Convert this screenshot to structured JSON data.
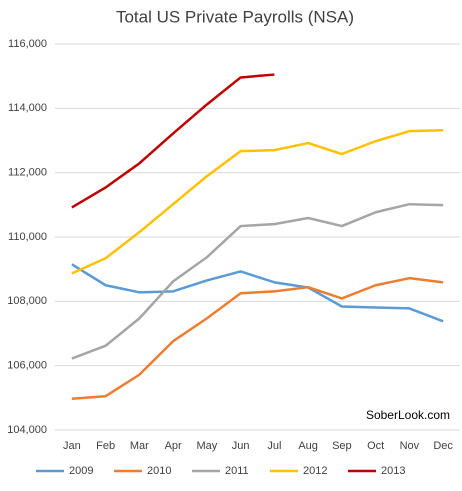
{
  "chart_data": {
    "type": "line",
    "title": "Total US Private Payrolls (NSA)",
    "categories": [
      "Jan",
      "Feb",
      "Mar",
      "Apr",
      "May",
      "Jun",
      "Jul",
      "Aug",
      "Sep",
      "Oct",
      "Nov",
      "Dec"
    ],
    "series": [
      {
        "name": "2009",
        "color": "#5b9bd5",
        "values": [
          109150,
          108500,
          108280,
          108310,
          108650,
          108930,
          108590,
          108430,
          107840,
          107810,
          107780,
          107380
        ]
      },
      {
        "name": "2010",
        "color": "#ed7d31",
        "values": [
          104970,
          105050,
          105720,
          106760,
          107470,
          108250,
          108310,
          108440,
          108090,
          108500,
          108720,
          108590
        ]
      },
      {
        "name": "2011",
        "color": "#a5a5a5",
        "values": [
          106220,
          106620,
          107470,
          108620,
          109370,
          110340,
          110400,
          110590,
          110340,
          110770,
          111020,
          110990
        ]
      },
      {
        "name": "2012",
        "color": "#ffc000",
        "values": [
          108870,
          109340,
          110150,
          111020,
          111890,
          112670,
          112700,
          112920,
          112580,
          112980,
          113290,
          113320
        ]
      },
      {
        "name": "2013",
        "color": "#c00000",
        "values": [
          110920,
          111540,
          112290,
          113220,
          114120,
          114960,
          115050,
          null,
          null,
          null,
          null,
          null
        ]
      }
    ],
    "ylim": [
      104000,
      116000
    ],
    "yticks": [
      {
        "value": 104000,
        "label": "104,000"
      },
      {
        "value": 106000,
        "label": "106,000"
      },
      {
        "value": 108000,
        "label": "108,000"
      },
      {
        "value": 110000,
        "label": "110,000"
      },
      {
        "value": 112000,
        "label": "112,000"
      },
      {
        "value": 114000,
        "label": "114,000"
      },
      {
        "value": 116000,
        "label": "116,000"
      }
    ],
    "grid": true,
    "annotation": "SoberLook.com",
    "legend": "bottom"
  }
}
